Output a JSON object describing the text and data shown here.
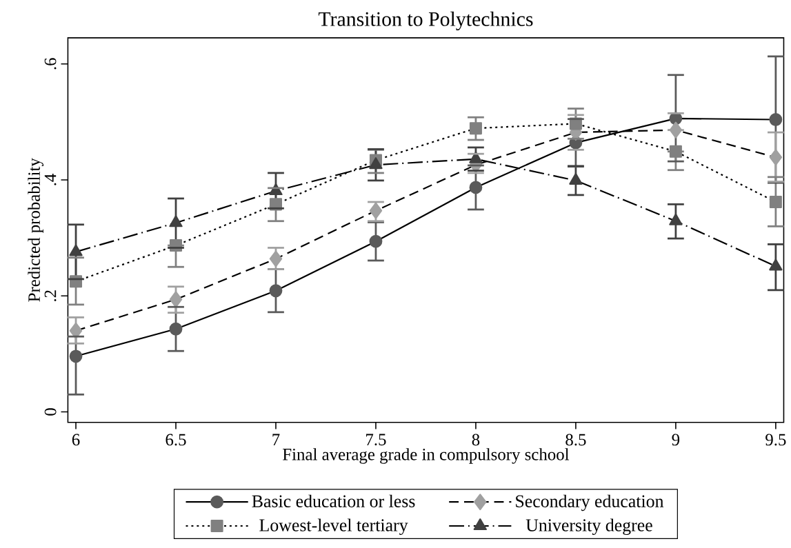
{
  "chart_data": {
    "type": "line",
    "title": "Transition to Polytechnics",
    "xlabel": "Final average grade in compulsory school",
    "ylabel": "Predicted probability",
    "x": [
      6,
      6.5,
      7,
      7.5,
      8,
      8.5,
      9,
      9.5
    ],
    "xlim": [
      5.96,
      9.54
    ],
    "xticks": [
      6,
      6.5,
      7,
      7.5,
      8,
      8.5,
      9,
      9.5
    ],
    "ylim": [
      -0.018,
      0.645
    ],
    "yticks": [
      0,
      {
        "value": 0.2,
        "label": ".2"
      },
      {
        "value": 0.4,
        "label": ".4"
      },
      {
        "value": 0.6,
        "label": ".6"
      }
    ],
    "grid": false,
    "legend": "bottom",
    "series": [
      {
        "name": "Basic education or less",
        "color": "#5a5a5a",
        "marker": "circle",
        "line_style": "solid",
        "values": [
          0.096,
          0.143,
          0.209,
          0.294,
          0.387,
          0.464,
          0.506,
          0.504
        ],
        "errors": [
          [
            0.03,
            0.13
          ],
          [
            0.105,
            0.181
          ],
          [
            0.172,
            0.246
          ],
          [
            0.261,
            0.327
          ],
          [
            0.349,
            0.425
          ],
          [
            0.423,
            0.505
          ],
          [
            0.432,
            0.581
          ],
          [
            0.395,
            0.613
          ]
        ]
      },
      {
        "name": "Secondary education",
        "color": "#a0a0a0",
        "marker": "diamond",
        "line_style": "dashed",
        "values": [
          0.14,
          0.194,
          0.264,
          0.347,
          0.426,
          0.482,
          0.486,
          0.439
        ],
        "errors": [
          [
            0.118,
            0.163
          ],
          [
            0.171,
            0.216
          ],
          [
            0.246,
            0.283
          ],
          [
            0.329,
            0.362
          ],
          [
            0.412,
            0.445
          ],
          [
            0.452,
            0.512
          ],
          [
            0.486,
            0.515
          ],
          [
            0.397,
            0.482
          ]
        ]
      },
      {
        "name": "Lowest-level tertiary",
        "color": "#808080",
        "marker": "square",
        "line_style": "dotted",
        "values": [
          0.225,
          0.287,
          0.358,
          0.434,
          0.489,
          0.497,
          0.449,
          0.362
        ],
        "errors": [
          [
            0.185,
            0.266
          ],
          [
            0.25,
            0.287
          ],
          [
            0.329,
            0.386
          ],
          [
            0.412,
            0.452
          ],
          [
            0.469,
            0.508
          ],
          [
            0.471,
            0.523
          ],
          [
            0.417,
            0.449
          ],
          [
            0.32,
            0.405
          ]
        ]
      },
      {
        "name": "University degree",
        "color": "#404040",
        "marker": "triangle",
        "line_style": "dashdot",
        "values": [
          0.276,
          0.326,
          0.381,
          0.426,
          0.436,
          0.399,
          0.329,
          0.251
        ],
        "errors": [
          [
            0.229,
            0.323
          ],
          [
            0.283,
            0.368
          ],
          [
            0.351,
            0.412
          ],
          [
            0.399,
            0.453
          ],
          [
            0.416,
            0.456
          ],
          [
            0.374,
            0.424
          ],
          [
            0.299,
            0.358
          ],
          [
            0.21,
            0.289
          ]
        ]
      }
    ]
  }
}
